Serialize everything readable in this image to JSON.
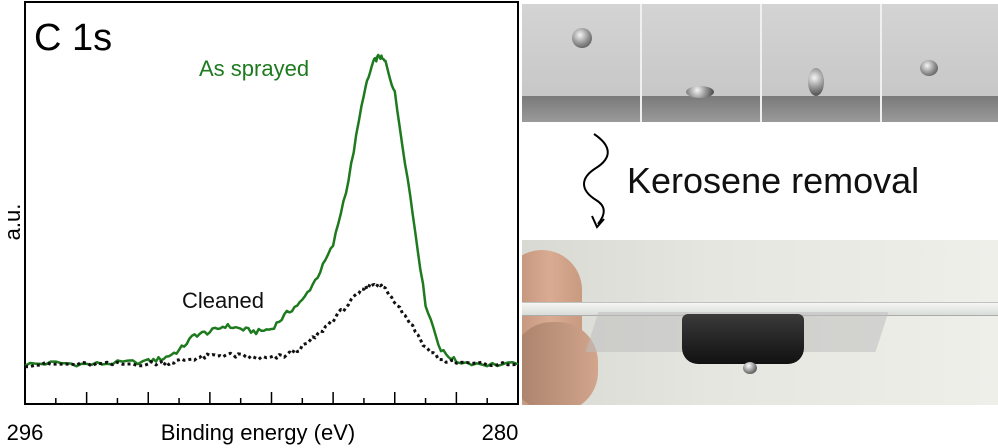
{
  "chart_data": {
    "type": "line",
    "panel_label": "C 1s",
    "xlabel": "Binding energy (eV)",
    "ylabel": "a.u.",
    "x_tick_labels": [
      "296",
      "280"
    ],
    "xlim": [
      296,
      280
    ],
    "ylim": [
      0,
      100
    ],
    "annotations": [
      {
        "text": "As sprayed",
        "series": "As sprayed",
        "color": "#1e7a1e"
      },
      {
        "text": "Cleaned",
        "series": "Cleaned",
        "color": "#111111"
      }
    ],
    "series": [
      {
        "name": "As sprayed",
        "style": "solid",
        "color": "#1e7a1e",
        "x": [
          296,
          295,
          294,
          293,
          292,
          291.5,
          291,
          290.5,
          290,
          289.5,
          289,
          288.5,
          288,
          287.5,
          287,
          286.5,
          286,
          285.5,
          285,
          284.7,
          284.5,
          284.3,
          284,
          283.5,
          283,
          282.5,
          282,
          281,
          280
        ],
        "y": [
          0.5,
          1.0,
          0.5,
          1.0,
          1.5,
          2.5,
          5,
          10,
          11,
          13,
          12,
          11,
          12,
          17,
          21,
          29,
          39,
          60,
          88,
          98,
          100,
          98,
          88,
          55,
          20,
          5,
          1.5,
          0.5,
          0.5
        ]
      },
      {
        "name": "Cleaned",
        "style": "dotted",
        "color": "#111111",
        "x": [
          296,
          295,
          294,
          293,
          292,
          291.5,
          291,
          290.5,
          290,
          289.5,
          289,
          288.5,
          288,
          287.5,
          287,
          286.5,
          286,
          285.5,
          285,
          284.7,
          284.5,
          284.3,
          284,
          283.5,
          283,
          282.5,
          282,
          281,
          280
        ],
        "y": [
          0.5,
          0.5,
          0.5,
          0.5,
          0.8,
          1.0,
          1.6,
          2.5,
          3.2,
          3.6,
          3.2,
          2.5,
          2.5,
          3.5,
          6,
          10,
          15,
          20,
          25,
          26.5,
          26,
          25,
          21,
          14,
          6,
          2,
          1,
          0.5,
          0.5
        ]
      }
    ]
  },
  "right_panel": {
    "caption": "Kerosene removal"
  }
}
